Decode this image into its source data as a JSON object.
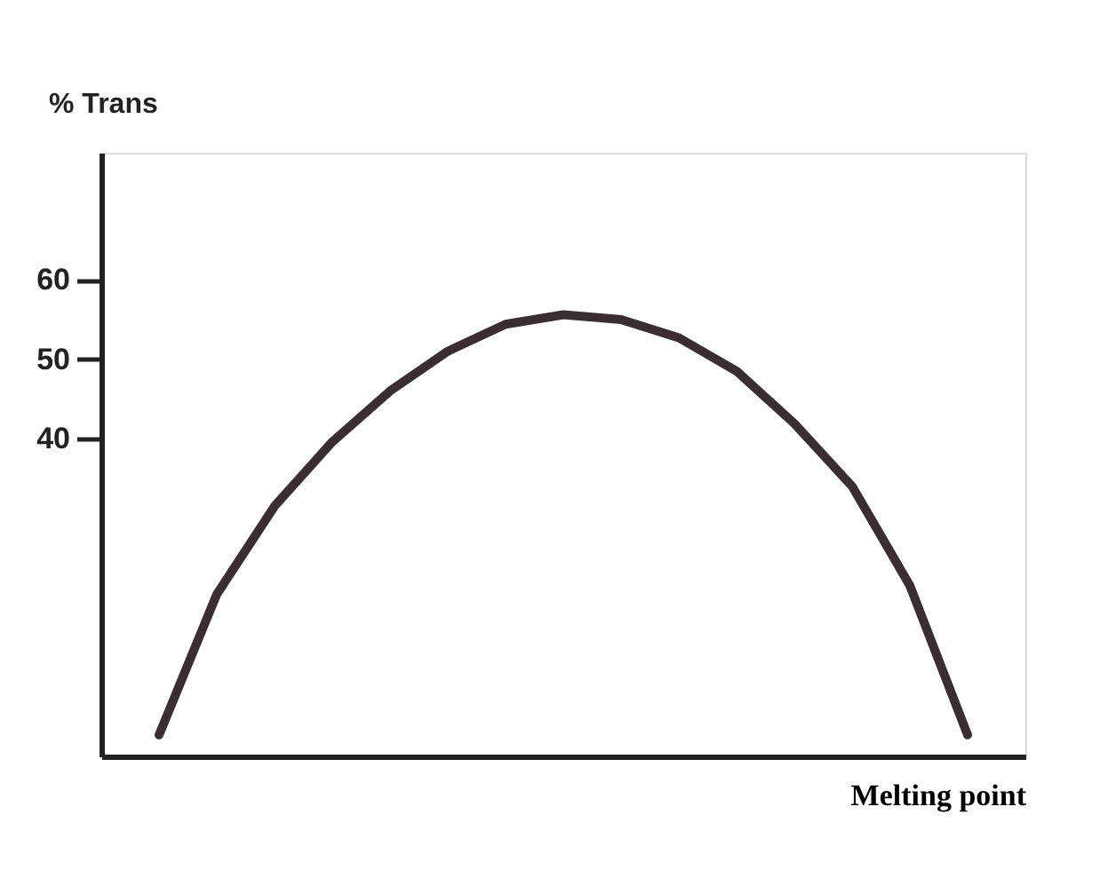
{
  "chart_data": {
    "type": "line",
    "xlabel": "Melting point",
    "ylabel": "% Trans",
    "categories": [
      null,
      null,
      null,
      null,
      null,
      null,
      null,
      null,
      null,
      null,
      null,
      null,
      null,
      null,
      null
    ],
    "series": [
      {
        "color": "#3a2e33",
        "values": [
          2.7,
          20.4,
          31.5,
          39.6,
          46,
          51,
          54.4,
          55.6,
          55,
          52.7,
          48.5,
          41.9,
          34,
          21.5,
          2.7
        ]
      }
    ],
    "ylim": [
      0,
      76
    ],
    "yticks": [
      40,
      50,
      60
    ],
    "tick_labels": "y",
    "grid": false,
    "marker": "none",
    "line_style": "solid"
  }
}
